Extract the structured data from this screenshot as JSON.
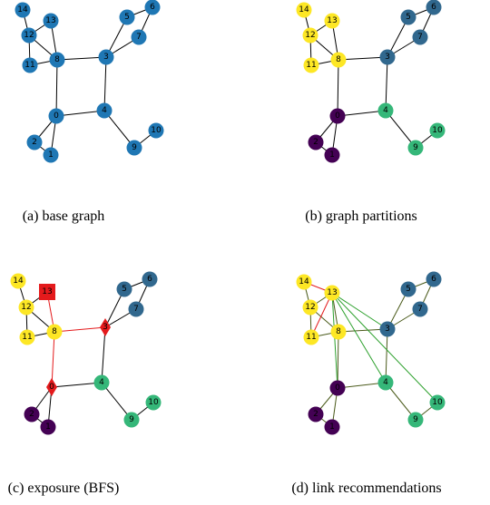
{
  "panels": [
    {
      "caption": "(a) base graph",
      "nodes": [
        "0",
        "1",
        "2",
        "3",
        "4",
        "5",
        "6",
        "7",
        "8",
        "9",
        "10",
        "11",
        "12",
        "13",
        "14"
      ]
    },
    {
      "caption": "(b) graph partitions",
      "nodes": [
        "0",
        "1",
        "2",
        "3",
        "4",
        "5",
        "6",
        "7",
        "8",
        "9",
        "10",
        "11",
        "12",
        "13",
        "14"
      ]
    },
    {
      "caption": "(c) exposure (BFS)",
      "nodes": [
        "0",
        "1",
        "2",
        "3",
        "4",
        "5",
        "6",
        "7",
        "8",
        "9",
        "10",
        "11",
        "12",
        "13",
        "14"
      ]
    },
    {
      "caption": "(d) link recommendations",
      "nodes": [
        "0",
        "1",
        "2",
        "3",
        "4",
        "5",
        "6",
        "7",
        "8",
        "9",
        "10",
        "11",
        "12",
        "13",
        "14"
      ]
    }
  ]
}
